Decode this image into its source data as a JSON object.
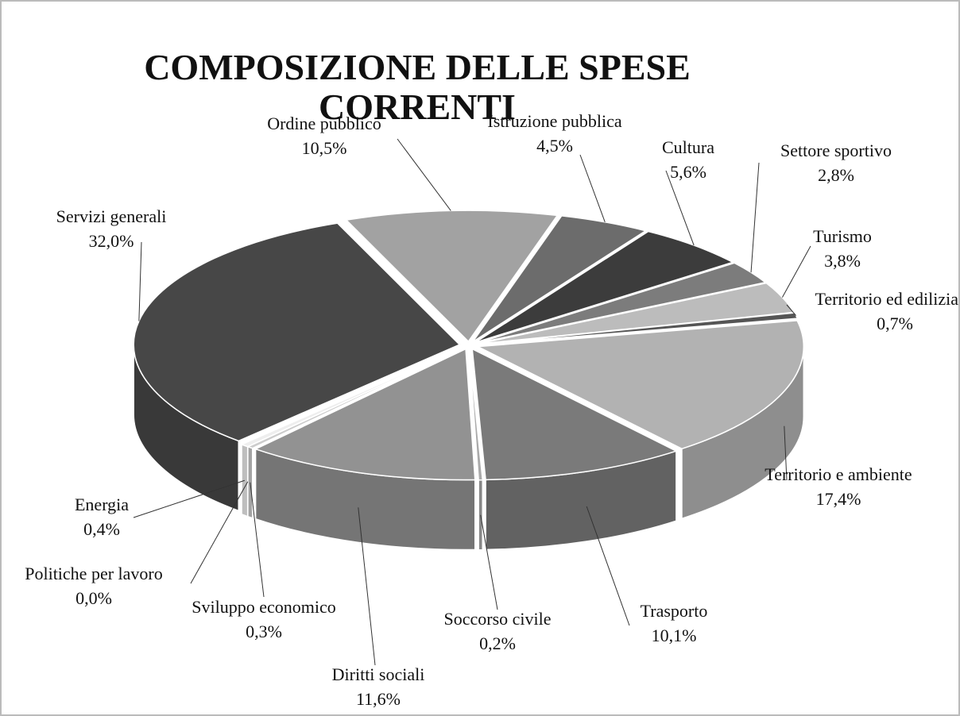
{
  "chart_data": {
    "type": "pie3d",
    "title": "COMPOSIZIONE DELLE SPESE CORRENTI",
    "categories": [
      "Ordine pubblico",
      "Istruzione pubblica",
      "Cultura",
      "Settore sportivo",
      "Turismo",
      "Territorio ed edilizia",
      "Territorio e ambiente",
      "Trasporto",
      "Soccorso civile",
      "Diritti sociali",
      "Sviluppo economico",
      "Politiche per lavoro",
      "Energia",
      "Servizi generali"
    ],
    "values": [
      10.5,
      4.5,
      5.6,
      2.8,
      3.8,
      0.7,
      17.4,
      10.1,
      0.2,
      11.6,
      0.3,
      0.0,
      0.4,
      32.0
    ],
    "value_labels": [
      "10,5%",
      "4,5%",
      "5,6%",
      "2,8%",
      "3,8%",
      "0,7%",
      "17,4%",
      "10,1%",
      "0,2%",
      "11,6%",
      "0,3%",
      "0,0%",
      "0,4%",
      "32,0%"
    ],
    "colors": [
      "#a2a2a2",
      "#6c6c6c",
      "#3c3c3c",
      "#7c7c7c",
      "#bcbcbc",
      "#555555",
      "#b2b2b2",
      "#7a7a7a",
      "#aaaaaa",
      "#929292",
      "#cccccc",
      "#dddddd",
      "#eeeeee",
      "#474747"
    ]
  }
}
